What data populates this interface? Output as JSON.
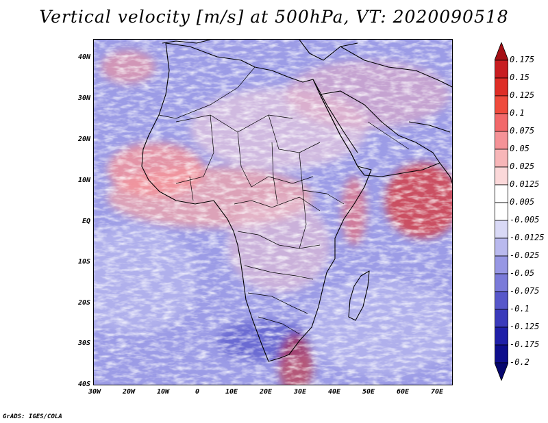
{
  "title": "Vertical velocity [m/s] at 500hPa, VT: 2020090518",
  "credit": "GrADS: IGES/COLA",
  "map": {
    "region": "Africa and Arabian Peninsula",
    "lon_range": [
      -30,
      75
    ],
    "lat_range": [
      -40,
      45
    ],
    "lat_ticks": [
      "40N",
      "30N",
      "20N",
      "10N",
      "EQ",
      "10S",
      "20S",
      "30S",
      "40S"
    ],
    "lon_ticks": [
      "30W",
      "20W",
      "10W",
      "0",
      "10E",
      "20E",
      "30E",
      "40E",
      "50E",
      "60E",
      "70E"
    ]
  },
  "colorbar": {
    "levels": [
      "0.175",
      "0.15",
      "0.125",
      "0.1",
      "0.075",
      "0.05",
      "0.025",
      "0.0125",
      "0.005",
      "-0.005",
      "-0.0125",
      "-0.025",
      "-0.05",
      "-0.075",
      "-0.1",
      "-0.125",
      "-0.175",
      "-0.2"
    ],
    "colors": [
      "#a50f15",
      "#c81d21",
      "#de2d26",
      "#ef4a3c",
      "#f2686a",
      "#f59297",
      "#f7b6b8",
      "#fbd8d9",
      "#ffffff",
      "#ffffff",
      "#d9d9f6",
      "#b9b9ee",
      "#9797e4",
      "#7a7ad9",
      "#5757ca",
      "#3a3abb",
      "#1f1fa8",
      "#0e0e8c",
      "#06066e"
    ]
  }
}
